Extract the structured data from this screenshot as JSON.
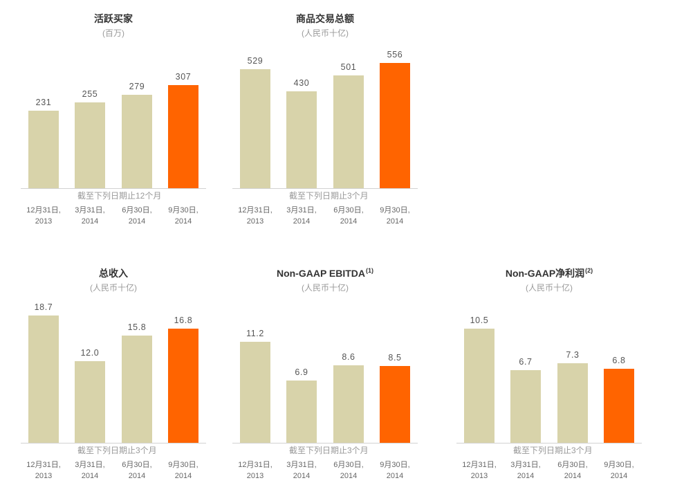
{
  "chart_data": [
    {
      "type": "bar",
      "title": "活跃买家",
      "subtitle": "(百万)",
      "caption": "截至下列日期止12个月",
      "categories": [
        "12月31日,\n2013",
        "3月31日,\n2014",
        "6月30日,\n2014",
        "9月30日,\n2014"
      ],
      "values": [
        231,
        255,
        279,
        307
      ],
      "data_labels": [
        "231",
        "255",
        "279",
        "307"
      ],
      "bar_colors": [
        "#d8d3aa",
        "#d8d3aa",
        "#d8d3aa",
        "#ff6400"
      ],
      "grid": false
    },
    {
      "type": "bar",
      "title": "商品交易总额",
      "subtitle": "(人民币十亿)",
      "caption": "截至下列日期止3个月",
      "categories": [
        "12月31日,\n2013",
        "3月31日,\n2014",
        "6月30日,\n2014",
        "9月30日,\n2014"
      ],
      "values": [
        529,
        430,
        501,
        556
      ],
      "data_labels": [
        "529",
        "430",
        "501",
        "556"
      ],
      "bar_colors": [
        "#d8d3aa",
        "#d8d3aa",
        "#d8d3aa",
        "#ff6400"
      ],
      "grid": false
    },
    {
      "type": "bar",
      "title": "总收入",
      "subtitle": "(人民币十亿)",
      "caption": "截至下列日期止3个月",
      "categories": [
        "12月31日,\n2013",
        "3月31日,\n2014",
        "6月30日,\n2014",
        "9月30日,\n2014"
      ],
      "values": [
        18.7,
        12.0,
        15.8,
        16.8
      ],
      "data_labels": [
        "18.7",
        "12.0",
        "15.8",
        "16.8"
      ],
      "bar_colors": [
        "#d8d3aa",
        "#d8d3aa",
        "#d8d3aa",
        "#ff6400"
      ],
      "grid": false
    },
    {
      "type": "bar",
      "title": "Non-GAAP EBITDA",
      "title_note": "(1)",
      "subtitle": "(人民币十亿)",
      "caption": "截至下列日期止3个月",
      "categories": [
        "12月31日,\n2013",
        "3月31日,\n2014",
        "6月30日,\n2014",
        "9月30日,\n2014"
      ],
      "values": [
        11.2,
        6.9,
        8.6,
        8.5
      ],
      "data_labels": [
        "11.2",
        "6.9",
        "8.6",
        "8.5"
      ],
      "bar_colors": [
        "#d8d3aa",
        "#d8d3aa",
        "#d8d3aa",
        "#ff6400"
      ],
      "grid": false
    },
    {
      "type": "bar",
      "title": "Non-GAAP净利润",
      "title_note": "(2)",
      "subtitle": "(人民币十亿)",
      "caption": "截至下列日期止3个月",
      "categories": [
        "12月31日,\n2013",
        "3月31日,\n2014",
        "6月30日,\n2014",
        "9月30日,\n2014"
      ],
      "values": [
        10.5,
        6.7,
        7.3,
        6.8
      ],
      "data_labels": [
        "10.5",
        "6.7",
        "7.3",
        "6.8"
      ],
      "bar_colors": [
        "#d8d3aa",
        "#d8d3aa",
        "#d8d3aa",
        "#ff6400"
      ],
      "grid": false
    }
  ]
}
